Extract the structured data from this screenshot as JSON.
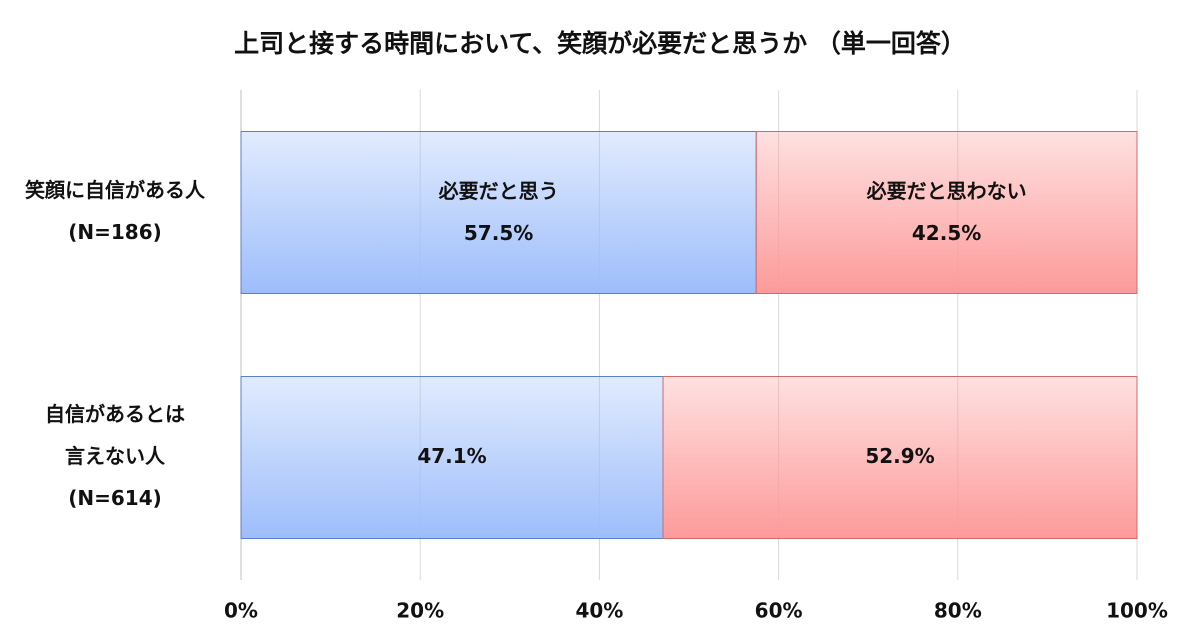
{
  "chart_data": {
    "type": "stacked-bar-horizontal",
    "title": "上司と接する時間において、笑顔が必要だと思うか （単一回答）",
    "categories": [
      [
        "笑顔に自信がある人",
        "(N=186)"
      ],
      [
        "自信があるとは",
        "言えない人",
        "(N=614)"
      ]
    ],
    "series": [
      {
        "name": "必要だと思う",
        "color": "#9dbdfb",
        "values": [
          57.5,
          47.1
        ],
        "value_labels": [
          "57.5%",
          "47.1%"
        ]
      },
      {
        "name": "必要だと思わない",
        "color": "#fd9a9a",
        "values": [
          42.5,
          52.9
        ],
        "value_labels": [
          "42.5%",
          "52.9%"
        ]
      }
    ],
    "xlim": [
      0,
      100
    ],
    "xticks": [
      {
        "value": 0,
        "label": "0%"
      },
      {
        "value": 20,
        "label": "20%"
      },
      {
        "value": 40,
        "label": "40%"
      },
      {
        "value": 60,
        "label": "60%"
      },
      {
        "value": 80,
        "label": "80%"
      },
      {
        "value": 100,
        "label": "100%"
      }
    ],
    "grid": true
  }
}
